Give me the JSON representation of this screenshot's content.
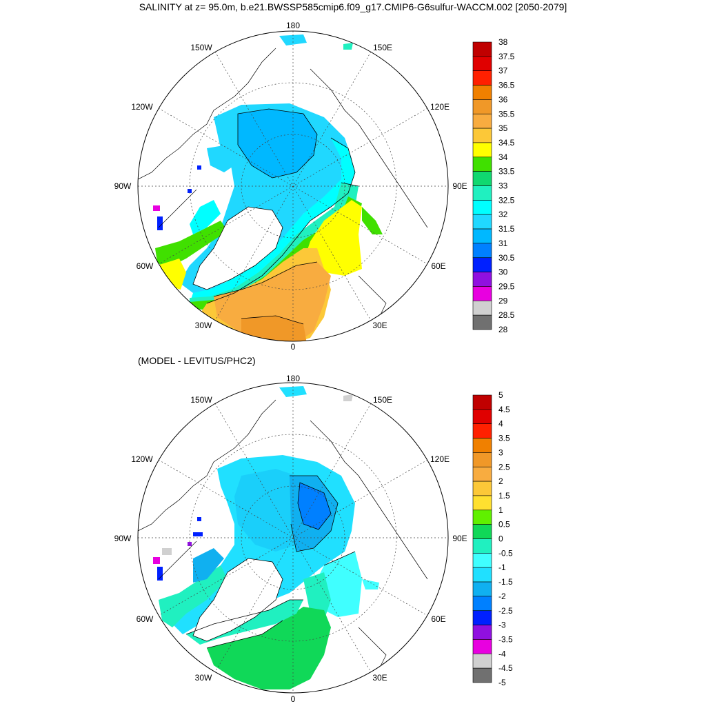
{
  "title": "SALINITY at z=  95.0m, b.e21.BWSSP585cmip6.f09_g17.CMIP6-G6sulfur-WACCM.002 [2050-2079]",
  "subtitle": "(MODEL - LEVITUS/PHC2)",
  "lon_labels": {
    "180": "180",
    "150W": "150W",
    "150E": "150E",
    "120W": "120W",
    "120E": "120E",
    "90W": "90W",
    "90E": "90E",
    "60W": "60W",
    "60E": "60E",
    "30W": "30W",
    "30E": "30E",
    "0": "0"
  },
  "colorbar_top": {
    "labels": [
      "38",
      "37.5",
      "37",
      "36.5",
      "36",
      "35.5",
      "35",
      "34.5",
      "34",
      "33.5",
      "33",
      "32.5",
      "32",
      "31.5",
      "31",
      "30.5",
      "30",
      "29.5",
      "29",
      "28.5",
      "28"
    ],
    "colors": [
      "#c00000",
      "#e00000",
      "#ff2000",
      "#f08000",
      "#f09828",
      "#f8ac40",
      "#fcc838",
      "#ffff00",
      "#40e000",
      "#10d870",
      "#20f0c0",
      "#00ffff",
      "#20d8ff",
      "#00b8ff",
      "#0080ff",
      "#0020ff",
      "#9010e0",
      "#e800e0",
      "#d0d0d0",
      "#707070"
    ]
  },
  "colorbar_bottom": {
    "labels": [
      "5",
      "4.5",
      "4",
      "3.5",
      "3",
      "2.5",
      "2",
      "1.5",
      "1",
      "0.5",
      "0",
      "-0.5",
      "-1",
      "-1.5",
      "-2",
      "-2.5",
      "-3",
      "-3.5",
      "-4",
      "-4.5",
      "-5"
    ],
    "colors": [
      "#c00000",
      "#e00000",
      "#ff2000",
      "#f08000",
      "#f09828",
      "#f8ac40",
      "#fcc838",
      "#ffe030",
      "#60f000",
      "#10d858",
      "#20f0c0",
      "#40ffff",
      "#20e0ff",
      "#10b0f0",
      "#0080ff",
      "#0020ff",
      "#9010e0",
      "#e800e0",
      "#d0d0d0",
      "#707070"
    ]
  }
}
